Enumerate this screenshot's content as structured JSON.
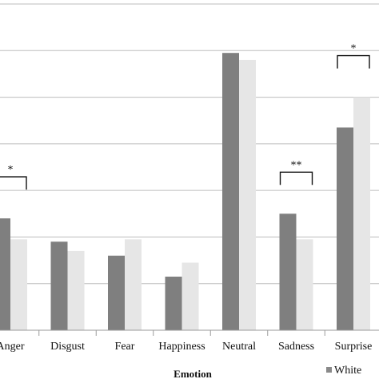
{
  "chart_data": {
    "type": "bar",
    "xlabel": "Emotion",
    "ylabel": "",
    "categories": [
      "Anger",
      "Disgust",
      "Fear",
      "Happiness",
      "Neutral",
      "Sadness",
      "Surprise"
    ],
    "series": [
      {
        "name": "",
        "color": "#7f7f7f",
        "values": [
          2.4,
          1.9,
          1.6,
          1.15,
          5.95,
          2.5,
          4.35
        ]
      },
      {
        "name": "White",
        "color": "#e6e6e6",
        "values": [
          1.95,
          1.7,
          1.95,
          1.45,
          5.8,
          1.95,
          5.0
        ]
      }
    ],
    "ylim": [
      0,
      7
    ],
    "grid": true,
    "legend": "bottom-right",
    "annotations": [
      {
        "category": "Anger",
        "label": "*"
      },
      {
        "category": "Sadness",
        "label": "**"
      },
      {
        "category": "Surprise",
        "label": "*"
      }
    ]
  }
}
